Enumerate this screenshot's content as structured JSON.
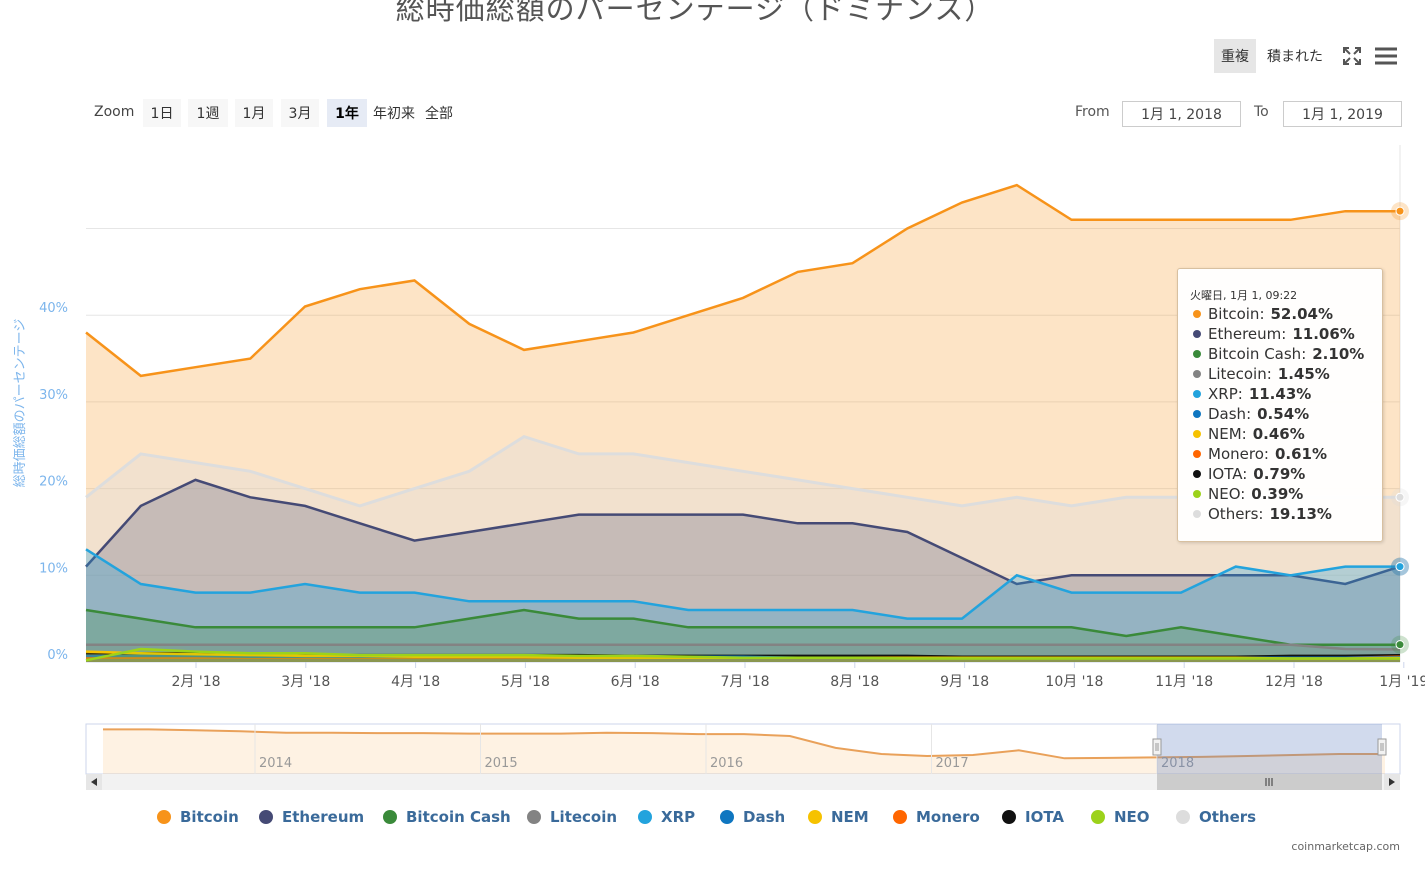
{
  "page": {
    "title": "総時価総額のパーセンテージ（ドミナンス）",
    "credit": "coinmarketcap.com"
  },
  "toolbar": {
    "overlap_label": "重複",
    "stacked_label": "積まれた",
    "fullscreen_icon": "fullscreen-icon",
    "menu_icon": "hamburger-menu-icon"
  },
  "range_selector": {
    "zoom_label": "Zoom",
    "buttons": [
      "1日",
      "1週",
      "1月",
      "3月",
      "1年",
      "年初来",
      "全部"
    ],
    "selected": "1年",
    "from_label": "From",
    "from_value": "1月 1, 2018",
    "to_label": "To",
    "to_value": "1月 1, 2019"
  },
  "tooltip": {
    "header": "火曜日, 1月 1, 09:22",
    "rows": [
      {
        "name": "Bitcoin",
        "value": "52.04%",
        "color": "#f7931a"
      },
      {
        "name": "Ethereum",
        "value": "11.06%",
        "color": "#454a75"
      },
      {
        "name": "Bitcoin Cash",
        "value": "2.10%",
        "color": "#3a8a3a"
      },
      {
        "name": "Litecoin",
        "value": "1.45%",
        "color": "#838383"
      },
      {
        "name": "XRP",
        "value": "11.43%",
        "color": "#23a3dd"
      },
      {
        "name": "Dash",
        "value": "0.54%",
        "color": "#0f76c0"
      },
      {
        "name": "NEM",
        "value": "0.46%",
        "color": "#f6c200"
      },
      {
        "name": "Monero",
        "value": "0.61%",
        "color": "#ff6600"
      },
      {
        "name": "IOTA",
        "value": "0.79%",
        "color": "#111111"
      },
      {
        "name": "NEO",
        "value": "0.39%",
        "color": "#9cd21b"
      },
      {
        "name": "Others",
        "value": "19.13%",
        "color": "#dddddd"
      }
    ]
  },
  "legend": [
    {
      "name": "Bitcoin",
      "color": "#f7931a"
    },
    {
      "name": "Ethereum",
      "color": "#454a75"
    },
    {
      "name": "Bitcoin Cash",
      "color": "#3a8a3a"
    },
    {
      "name": "Litecoin",
      "color": "#838383"
    },
    {
      "name": "XRP",
      "color": "#23a3dd"
    },
    {
      "name": "Dash",
      "color": "#0f76c0"
    },
    {
      "name": "NEM",
      "color": "#f6c200"
    },
    {
      "name": "Monero",
      "color": "#ff6600"
    },
    {
      "name": "IOTA",
      "color": "#111111"
    },
    {
      "name": "NEO",
      "color": "#9cd21b"
    },
    {
      "name": "Others",
      "color": "#dddddd"
    }
  ],
  "chart_data": {
    "type": "area",
    "title": "総時価総額のパーセンテージ（ドミナンス）",
    "ylabel": "総時価総額のパーセンテージ",
    "ylim": [
      0,
      60
    ],
    "yticks": [
      "0%",
      "10%",
      "20%",
      "30%",
      "40%"
    ],
    "xticks": [
      "2月 '18",
      "3月 '18",
      "4月 '18",
      "5月 '18",
      "6月 '18",
      "7月 '18",
      "8月 '18",
      "9月 '18",
      "10月 '18",
      "11月 '18",
      "12月 '18",
      "1月 '19"
    ],
    "grid": true,
    "legend_position": "bottom",
    "x": [
      "2018-01-01",
      "2018-01-15",
      "2018-02-01",
      "2018-02-15",
      "2018-03-01",
      "2018-03-15",
      "2018-04-01",
      "2018-04-15",
      "2018-05-01",
      "2018-05-15",
      "2018-06-01",
      "2018-06-15",
      "2018-07-01",
      "2018-07-15",
      "2018-08-01",
      "2018-08-15",
      "2018-09-01",
      "2018-09-15",
      "2018-10-01",
      "2018-10-15",
      "2018-11-01",
      "2018-11-15",
      "2018-12-01",
      "2018-12-15",
      "2019-01-01"
    ],
    "series": [
      {
        "name": "Bitcoin",
        "color": "#f7931a",
        "values": [
          38,
          33,
          34,
          35,
          41,
          43,
          44,
          39,
          36,
          37,
          38,
          40,
          42,
          45,
          46,
          50,
          53,
          55,
          51,
          51,
          51,
          51,
          51,
          52,
          52
        ]
      },
      {
        "name": "Others",
        "color": "#dddddd",
        "values": [
          19,
          24,
          23,
          22,
          20,
          18,
          20,
          22,
          26,
          24,
          24,
          23,
          22,
          21,
          20,
          19,
          18,
          19,
          18,
          19,
          19,
          19,
          19,
          19,
          19
        ]
      },
      {
        "name": "Ethereum",
        "color": "#454a75",
        "values": [
          11,
          18,
          21,
          19,
          18,
          16,
          14,
          15,
          16,
          17,
          17,
          17,
          17,
          16,
          16,
          15,
          12,
          9,
          10,
          10,
          10,
          10,
          10,
          9,
          11
        ]
      },
      {
        "name": "XRP",
        "color": "#23a3dd",
        "values": [
          13,
          9,
          8,
          8,
          9,
          8,
          8,
          7,
          7,
          7,
          7,
          6,
          6,
          6,
          6,
          5,
          5,
          10,
          8,
          8,
          8,
          11,
          10,
          11,
          11
        ]
      },
      {
        "name": "Bitcoin Cash",
        "color": "#3a8a3a",
        "values": [
          6,
          5,
          4,
          4,
          4,
          4,
          4,
          5,
          6,
          5,
          5,
          4,
          4,
          4,
          4,
          4,
          4,
          4,
          4,
          3,
          4,
          3,
          2,
          2,
          2
        ]
      },
      {
        "name": "Litecoin",
        "color": "#838383",
        "values": [
          2,
          2,
          2,
          2,
          2,
          2,
          2,
          2,
          2,
          2,
          2,
          2,
          2,
          2,
          2,
          2,
          2,
          2,
          2,
          2,
          2,
          2,
          2,
          1.5,
          1.45
        ]
      },
      {
        "name": "IOTA",
        "color": "#111111",
        "values": [
          1,
          1,
          1,
          1,
          0.8,
          0.8,
          0.8,
          0.8,
          0.8,
          0.8,
          0.7,
          0.7,
          0.7,
          0.7,
          0.7,
          0.7,
          0.6,
          0.6,
          0.6,
          0.6,
          0.6,
          0.6,
          0.7,
          0.7,
          0.79
        ]
      },
      {
        "name": "Monero",
        "color": "#ff6600",
        "values": [
          0.5,
          0.5,
          0.5,
          0.5,
          0.5,
          0.5,
          0.5,
          0.5,
          0.5,
          0.5,
          0.5,
          0.5,
          0.5,
          0.5,
          0.5,
          0.5,
          0.5,
          0.5,
          0.5,
          0.5,
          0.5,
          0.5,
          0.5,
          0.5,
          0.61
        ]
      },
      {
        "name": "Dash",
        "color": "#0f76c0",
        "values": [
          0.7,
          0.7,
          0.7,
          0.6,
          0.6,
          0.6,
          0.6,
          0.6,
          0.6,
          0.6,
          0.6,
          0.6,
          0.6,
          0.5,
          0.5,
          0.5,
          0.5,
          0.5,
          0.5,
          0.5,
          0.5,
          0.5,
          0.5,
          0.5,
          0.54
        ]
      },
      {
        "name": "NEM",
        "color": "#f6c200",
        "values": [
          1.2,
          1,
          0.9,
          0.8,
          0.7,
          0.7,
          0.6,
          0.6,
          0.6,
          0.5,
          0.5,
          0.5,
          0.5,
          0.5,
          0.5,
          0.5,
          0.5,
          0.5,
          0.5,
          0.5,
          0.5,
          0.5,
          0.4,
          0.4,
          0.46
        ]
      },
      {
        "name": "NEO",
        "color": "#9cd21b",
        "values": [
          0.2,
          1.5,
          1.2,
          1,
          1,
          0.8,
          0.8,
          0.8,
          0.8,
          0.7,
          0.7,
          0.6,
          0.5,
          0.5,
          0.5,
          0.4,
          0.4,
          0.4,
          0.4,
          0.4,
          0.4,
          0.4,
          0.4,
          0.4,
          0.39
        ]
      }
    ],
    "navigator": {
      "x_labels": [
        "2014",
        "2015",
        "2016",
        "2017",
        "2018"
      ],
      "series_name": "Bitcoin",
      "values": [
        94,
        94,
        92,
        90,
        87,
        87,
        86,
        86,
        85,
        85,
        85,
        87,
        86,
        84,
        84,
        80,
        55,
        42,
        38,
        40,
        50,
        33,
        34,
        35,
        36,
        38,
        40,
        42,
        42
      ]
    }
  }
}
